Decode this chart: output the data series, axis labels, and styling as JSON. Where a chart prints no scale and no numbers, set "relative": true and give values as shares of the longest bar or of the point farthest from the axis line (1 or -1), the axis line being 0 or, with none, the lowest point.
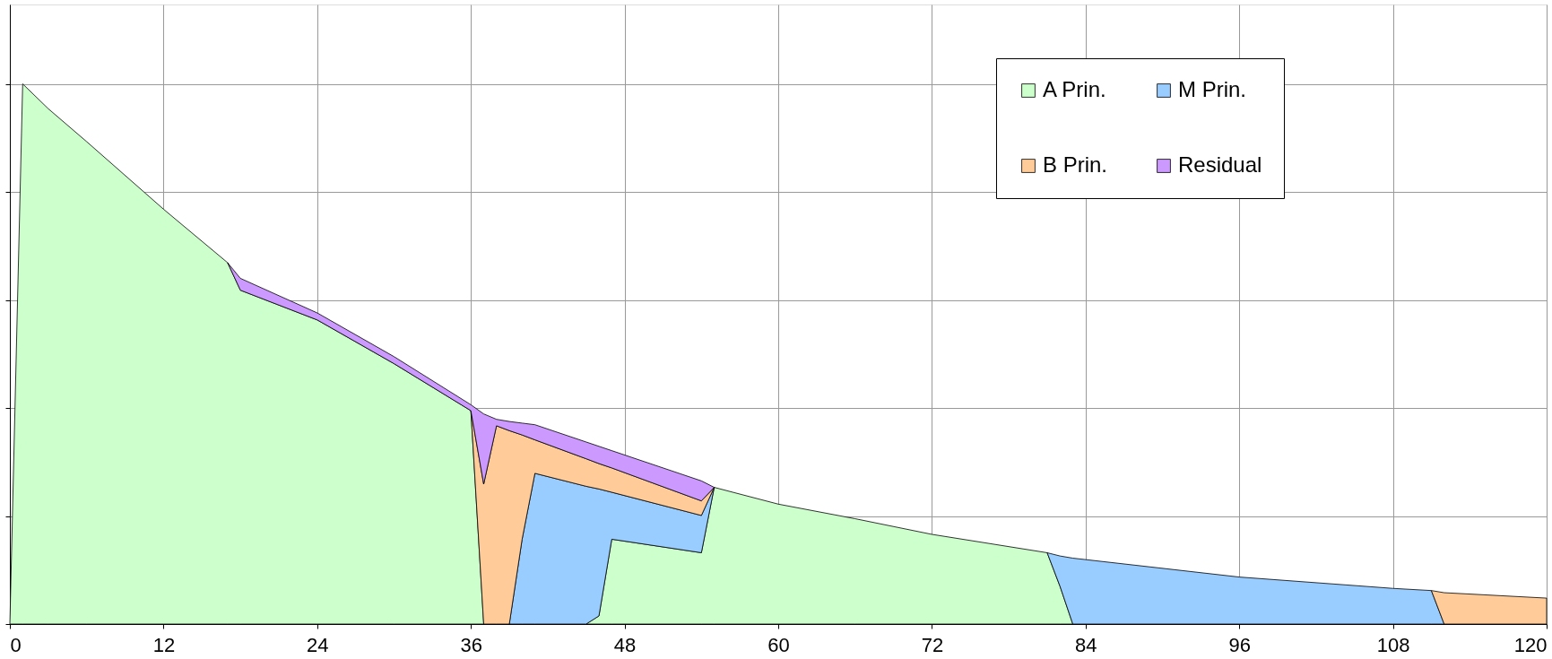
{
  "chart_data": {
    "type": "area",
    "stacked": true,
    "relative": true,
    "x": [
      0,
      1,
      3,
      6,
      12,
      17,
      18,
      24,
      30,
      36,
      37,
      38,
      39,
      40,
      41,
      45,
      46,
      47,
      54,
      55,
      60,
      66,
      72,
      81,
      82,
      83,
      96,
      108,
      111,
      112,
      120
    ],
    "series": [
      {
        "name": "A Prin.",
        "color": "#ccffcc",
        "values": [
          0,
          1.0,
          0.954,
          0.893,
          0.768,
          0.669,
          0.618,
          0.563,
          0.482,
          0.395,
          0,
          0,
          0,
          0,
          0,
          0,
          0.015,
          0.157,
          0.132,
          0.253,
          0.222,
          0.195,
          0.166,
          0.132,
          0.07,
          0,
          0,
          0,
          0,
          0,
          0
        ]
      },
      {
        "name": "M Prin.",
        "color": "#99ccff",
        "values": [
          null,
          null,
          null,
          null,
          null,
          null,
          null,
          null,
          null,
          null,
          null,
          null,
          0,
          0.157,
          0.279,
          0.255,
          0.235,
          0.087,
          0.069,
          0,
          null,
          null,
          null,
          0,
          0.056,
          0.122,
          0.087,
          0.066,
          0.062,
          0,
          null
        ]
      },
      {
        "name": "B Prin.",
        "color": "#ffcc99",
        "values": [
          null,
          null,
          null,
          null,
          null,
          null,
          null,
          null,
          null,
          0,
          0.259,
          0.367,
          0.358,
          0.193,
          0.062,
          0.051,
          0.047,
          0.045,
          0.027,
          0,
          null,
          null,
          null,
          null,
          null,
          null,
          null,
          null,
          0,
          0.058,
          0.048
        ]
      },
      {
        "name": "Residual",
        "color": "#cc99ff",
        "values": [
          null,
          null,
          null,
          null,
          null,
          0,
          0.022,
          0.013,
          0.013,
          0.011,
          0.13,
          0.012,
          0.017,
          0.022,
          0.028,
          0.031,
          0.032,
          0.032,
          0.037,
          0,
          null,
          null,
          null,
          null,
          null,
          null,
          null,
          null,
          null,
          null,
          null
        ]
      }
    ],
    "xlim": [
      0,
      120
    ],
    "xticks": [
      0,
      12,
      24,
      36,
      48,
      60,
      72,
      84,
      96,
      108,
      120
    ],
    "grid": true,
    "legend": "top right",
    "tick_labels": "x"
  }
}
